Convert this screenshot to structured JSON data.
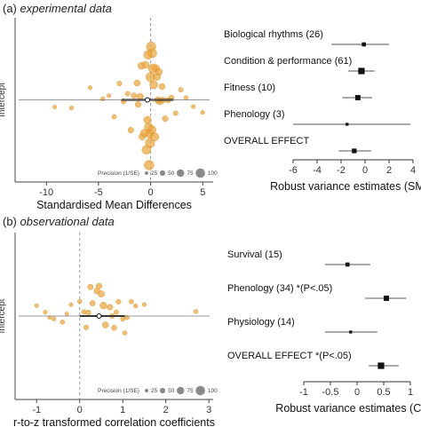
{
  "panels": [
    {
      "id": "a",
      "label": "(a)",
      "title": "experimental data"
    },
    {
      "id": "b",
      "label": "(b)",
      "title": "observational data"
    }
  ],
  "chart_data": [
    {
      "type": "scatter",
      "panel": "a",
      "ylabel": "Intercept",
      "xlabel": "Standardised Mean Differences",
      "xlim": [
        -13,
        6
      ],
      "xticks": [
        "-10",
        "-5",
        "0",
        "5"
      ],
      "tick_values": [
        -10,
        -5,
        0,
        5
      ],
      "reference_line": 0,
      "point_color": "#e8a33a",
      "legend": {
        "title": "Precision (1/SE)",
        "values": [
          "25",
          "50",
          "75",
          "100"
        ]
      },
      "pooled": {
        "estimate": -0.3,
        "ci": [
          -2.8,
          2.2
        ]
      },
      "points": [
        {
          "x": -9.2,
          "p": 18
        },
        {
          "x": -7.6,
          "p": 22
        },
        {
          "x": -5.8,
          "p": 20
        },
        {
          "x": -4.6,
          "p": 25
        },
        {
          "x": -4.0,
          "p": 20
        },
        {
          "x": -3.5,
          "p": 28
        },
        {
          "x": -3.0,
          "p": 32
        },
        {
          "x": -2.6,
          "p": 35
        },
        {
          "x": -2.2,
          "p": 30
        },
        {
          "x": -1.9,
          "p": 45
        },
        {
          "x": -1.6,
          "p": 42
        },
        {
          "x": -1.3,
          "p": 50
        },
        {
          "x": -1.0,
          "p": 55
        },
        {
          "x": -0.8,
          "p": 60
        },
        {
          "x": -0.5,
          "p": 65
        },
        {
          "x": -0.3,
          "p": 70
        },
        {
          "x": -0.1,
          "p": 80
        },
        {
          "x": 0.1,
          "p": 85
        },
        {
          "x": 0.3,
          "p": 75
        },
        {
          "x": 0.5,
          "p": 68
        },
        {
          "x": 0.7,
          "p": 60
        },
        {
          "x": 0.9,
          "p": 55
        },
        {
          "x": 1.1,
          "p": 50
        },
        {
          "x": 1.4,
          "p": 45
        },
        {
          "x": 1.7,
          "p": 40
        },
        {
          "x": 2.0,
          "p": 35
        },
        {
          "x": 2.4,
          "p": 30
        },
        {
          "x": 2.9,
          "p": 28
        },
        {
          "x": 3.4,
          "p": 25
        },
        {
          "x": 4.1,
          "p": 22
        },
        {
          "x": 5.0,
          "p": 20
        },
        {
          "x": -0.4,
          "p": 90
        },
        {
          "x": 0.0,
          "p": 95
        },
        {
          "x": 0.2,
          "p": 88
        },
        {
          "x": -0.2,
          "p": 82
        },
        {
          "x": 0.4,
          "p": 78
        },
        {
          "x": -0.6,
          "p": 72
        },
        {
          "x": 0.6,
          "p": 70
        },
        {
          "x": -0.9,
          "p": 62
        },
        {
          "x": 0.8,
          "p": 58
        },
        {
          "x": -1.2,
          "p": 48
        },
        {
          "x": 1.2,
          "p": 46
        },
        {
          "x": -0.15,
          "p": 100
        },
        {
          "x": 0.05,
          "p": 98
        },
        {
          "x": -0.05,
          "p": 96
        },
        {
          "x": 0.15,
          "p": 92
        },
        {
          "x": -0.25,
          "p": 86
        }
      ]
    },
    {
      "type": "forest",
      "panel": "a",
      "xlabel": "Robust variance estimates (SMD)",
      "xlim": [
        -6,
        4
      ],
      "xticks": [
        "-6",
        "-4",
        "-2",
        "0",
        "2",
        "4"
      ],
      "tick_values": [
        -6,
        -4,
        -2,
        0,
        2,
        4
      ],
      "rows": [
        {
          "label": "Biological rhythms (26)",
          "estimate": -0.1,
          "ci": [
            -2.8,
            2.0
          ],
          "size": 2
        },
        {
          "label": "Condition & performance (61)",
          "estimate": -0.3,
          "ci": [
            -1.4,
            0.8
          ],
          "size": 4
        },
        {
          "label": "Fitness (10)",
          "estimate": -0.6,
          "ci": [
            -1.9,
            0.6
          ],
          "size": 3
        },
        {
          "label": "Phenology (3)",
          "estimate": -1.5,
          "ci": [
            -6.0,
            3.8
          ],
          "size": 1
        },
        {
          "label": "OVERALL EFFECT",
          "estimate": -0.9,
          "ci": [
            -2.2,
            0.5
          ],
          "size": 2.5
        }
      ]
    },
    {
      "type": "scatter",
      "panel": "b",
      "ylabel": "Intercept",
      "xlabel": "r-to-z transformed correlation coefficients",
      "xlim": [
        -1.5,
        3.1
      ],
      "xticks": [
        "-1",
        "0",
        "1",
        "2",
        "3"
      ],
      "tick_values": [
        -1,
        0,
        1,
        2,
        3
      ],
      "reference_line": 0,
      "point_color": "#e8a33a",
      "legend": {
        "title": "Precision (1/SE)",
        "values": [
          "25",
          "50",
          "75",
          "100"
        ]
      },
      "pooled": {
        "estimate": 0.45,
        "ci": [
          0.0,
          1.05
        ]
      },
      "points": [
        {
          "x": -1.0,
          "p": 20
        },
        {
          "x": -0.8,
          "p": 22
        },
        {
          "x": -0.6,
          "p": 25
        },
        {
          "x": -0.4,
          "p": 28
        },
        {
          "x": -0.2,
          "p": 20
        },
        {
          "x": 0.0,
          "p": 24
        },
        {
          "x": 0.1,
          "p": 30
        },
        {
          "x": 0.2,
          "p": 35
        },
        {
          "x": 0.3,
          "p": 40
        },
        {
          "x": 0.4,
          "p": 48
        },
        {
          "x": 0.5,
          "p": 55
        },
        {
          "x": 0.6,
          "p": 50
        },
        {
          "x": 0.7,
          "p": 45
        },
        {
          "x": 0.8,
          "p": 38
        },
        {
          "x": 0.9,
          "p": 34
        },
        {
          "x": 1.0,
          "p": 30
        },
        {
          "x": 1.1,
          "p": 28
        },
        {
          "x": 1.2,
          "p": 25
        },
        {
          "x": 1.3,
          "p": 22
        },
        {
          "x": 1.5,
          "p": 20
        },
        {
          "x": 2.7,
          "p": 24
        },
        {
          "x": -0.3,
          "p": 18
        },
        {
          "x": 0.25,
          "p": 42
        },
        {
          "x": 0.55,
          "p": 60
        },
        {
          "x": 0.75,
          "p": 35
        },
        {
          "x": 1.05,
          "p": 26
        },
        {
          "x": -0.7,
          "p": 19
        },
        {
          "x": 0.15,
          "p": 33
        },
        {
          "x": 0.45,
          "p": 44
        },
        {
          "x": 0.85,
          "p": 29
        }
      ]
    },
    {
      "type": "forest",
      "panel": "b",
      "xlabel": "Robust variance estimates (Corr)",
      "xlim": [
        -1,
        1
      ],
      "xticks": [
        "-1",
        "-0.5",
        "0",
        "0.5",
        "1"
      ],
      "tick_values": [
        -1,
        -0.5,
        0,
        0.5,
        1
      ],
      "rows": [
        {
          "label": "Survival (15)",
          "estimate": -0.18,
          "ci": [
            -0.6,
            0.25
          ],
          "size": 2
        },
        {
          "label": "Phenology (34) *(P<.05)",
          "estimate": 0.55,
          "ci": [
            0.15,
            0.92
          ],
          "size": 3
        },
        {
          "label": "Physiology (14)",
          "estimate": -0.12,
          "ci": [
            -0.6,
            0.38
          ],
          "size": 1
        },
        {
          "label": "OVERALL EFFECT *(P<.05)",
          "estimate": 0.45,
          "ci": [
            0.22,
            0.78
          ],
          "size": 4
        }
      ]
    }
  ]
}
